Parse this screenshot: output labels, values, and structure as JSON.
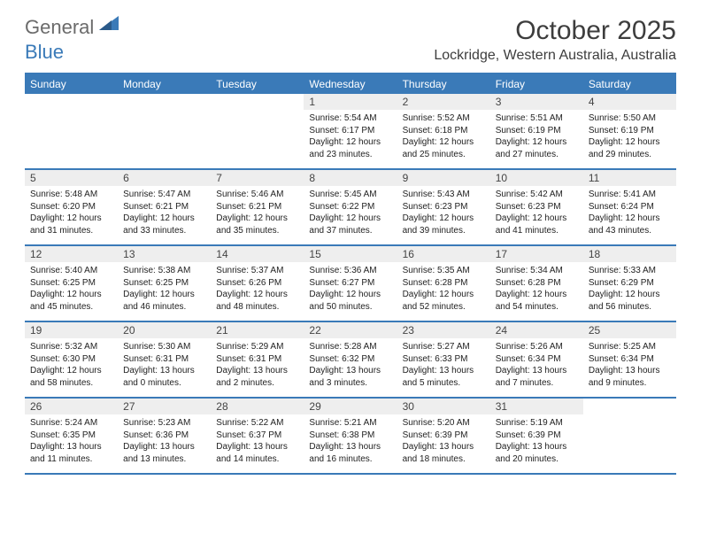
{
  "logo": {
    "text1": "General",
    "text2": "Blue"
  },
  "title": "October 2025",
  "location": "Lockridge, Western Australia, Australia",
  "colors": {
    "header_blue": "#3a7ab8",
    "daynum_bg": "#eeeeee",
    "text_gray": "#6b6b6b",
    "body_text": "#222222",
    "page_bg": "#ffffff"
  },
  "daynames": [
    "Sunday",
    "Monday",
    "Tuesday",
    "Wednesday",
    "Thursday",
    "Friday",
    "Saturday"
  ],
  "startOffset": 3,
  "days": [
    {
      "n": "1",
      "sr": "5:54 AM",
      "ss": "6:17 PM",
      "dl": "12 hours and 23 minutes."
    },
    {
      "n": "2",
      "sr": "5:52 AM",
      "ss": "6:18 PM",
      "dl": "12 hours and 25 minutes."
    },
    {
      "n": "3",
      "sr": "5:51 AM",
      "ss": "6:19 PM",
      "dl": "12 hours and 27 minutes."
    },
    {
      "n": "4",
      "sr": "5:50 AM",
      "ss": "6:19 PM",
      "dl": "12 hours and 29 minutes."
    },
    {
      "n": "5",
      "sr": "5:48 AM",
      "ss": "6:20 PM",
      "dl": "12 hours and 31 minutes."
    },
    {
      "n": "6",
      "sr": "5:47 AM",
      "ss": "6:21 PM",
      "dl": "12 hours and 33 minutes."
    },
    {
      "n": "7",
      "sr": "5:46 AM",
      "ss": "6:21 PM",
      "dl": "12 hours and 35 minutes."
    },
    {
      "n": "8",
      "sr": "5:45 AM",
      "ss": "6:22 PM",
      "dl": "12 hours and 37 minutes."
    },
    {
      "n": "9",
      "sr": "5:43 AM",
      "ss": "6:23 PM",
      "dl": "12 hours and 39 minutes."
    },
    {
      "n": "10",
      "sr": "5:42 AM",
      "ss": "6:23 PM",
      "dl": "12 hours and 41 minutes."
    },
    {
      "n": "11",
      "sr": "5:41 AM",
      "ss": "6:24 PM",
      "dl": "12 hours and 43 minutes."
    },
    {
      "n": "12",
      "sr": "5:40 AM",
      "ss": "6:25 PM",
      "dl": "12 hours and 45 minutes."
    },
    {
      "n": "13",
      "sr": "5:38 AM",
      "ss": "6:25 PM",
      "dl": "12 hours and 46 minutes."
    },
    {
      "n": "14",
      "sr": "5:37 AM",
      "ss": "6:26 PM",
      "dl": "12 hours and 48 minutes."
    },
    {
      "n": "15",
      "sr": "5:36 AM",
      "ss": "6:27 PM",
      "dl": "12 hours and 50 minutes."
    },
    {
      "n": "16",
      "sr": "5:35 AM",
      "ss": "6:28 PM",
      "dl": "12 hours and 52 minutes."
    },
    {
      "n": "17",
      "sr": "5:34 AM",
      "ss": "6:28 PM",
      "dl": "12 hours and 54 minutes."
    },
    {
      "n": "18",
      "sr": "5:33 AM",
      "ss": "6:29 PM",
      "dl": "12 hours and 56 minutes."
    },
    {
      "n": "19",
      "sr": "5:32 AM",
      "ss": "6:30 PM",
      "dl": "12 hours and 58 minutes."
    },
    {
      "n": "20",
      "sr": "5:30 AM",
      "ss": "6:31 PM",
      "dl": "13 hours and 0 minutes."
    },
    {
      "n": "21",
      "sr": "5:29 AM",
      "ss": "6:31 PM",
      "dl": "13 hours and 2 minutes."
    },
    {
      "n": "22",
      "sr": "5:28 AM",
      "ss": "6:32 PM",
      "dl": "13 hours and 3 minutes."
    },
    {
      "n": "23",
      "sr": "5:27 AM",
      "ss": "6:33 PM",
      "dl": "13 hours and 5 minutes."
    },
    {
      "n": "24",
      "sr": "5:26 AM",
      "ss": "6:34 PM",
      "dl": "13 hours and 7 minutes."
    },
    {
      "n": "25",
      "sr": "5:25 AM",
      "ss": "6:34 PM",
      "dl": "13 hours and 9 minutes."
    },
    {
      "n": "26",
      "sr": "5:24 AM",
      "ss": "6:35 PM",
      "dl": "13 hours and 11 minutes."
    },
    {
      "n": "27",
      "sr": "5:23 AM",
      "ss": "6:36 PM",
      "dl": "13 hours and 13 minutes."
    },
    {
      "n": "28",
      "sr": "5:22 AM",
      "ss": "6:37 PM",
      "dl": "13 hours and 14 minutes."
    },
    {
      "n": "29",
      "sr": "5:21 AM",
      "ss": "6:38 PM",
      "dl": "13 hours and 16 minutes."
    },
    {
      "n": "30",
      "sr": "5:20 AM",
      "ss": "6:39 PM",
      "dl": "13 hours and 18 minutes."
    },
    {
      "n": "31",
      "sr": "5:19 AM",
      "ss": "6:39 PM",
      "dl": "13 hours and 20 minutes."
    }
  ],
  "labels": {
    "sunrise": "Sunrise: ",
    "sunset": "Sunset: ",
    "daylight": "Daylight: "
  }
}
